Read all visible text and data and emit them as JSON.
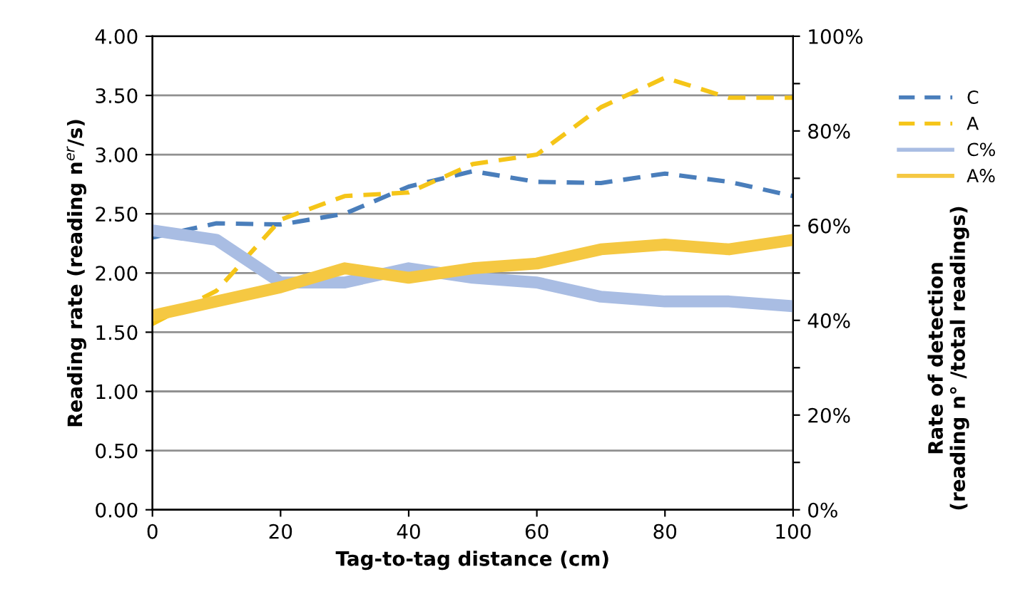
{
  "chart_data": {
    "type": "line",
    "xlabel": "Tag-to-tag distance (cm)",
    "ylabel": "Reading rate (reading n$^{er}$/s)",
    "y2label": "Rate of detection\n(reading n° /total readings)",
    "x": [
      0,
      10,
      20,
      30,
      40,
      50,
      60,
      70,
      80,
      90,
      100
    ],
    "xlim": [
      0,
      100
    ],
    "xticks": [
      0,
      20,
      40,
      60,
      80,
      100
    ],
    "ylim": [
      0,
      4
    ],
    "yticks": [
      {
        "value": 0,
        "label": "0.00"
      },
      {
        "value": 0.5,
        "label": "0.50"
      },
      {
        "value": 1,
        "label": "1.00"
      },
      {
        "value": 1.5,
        "label": "1.50"
      },
      {
        "value": 2,
        "label": "2.00"
      },
      {
        "value": 2.5,
        "label": "2.50"
      },
      {
        "value": 3,
        "label": "3.00"
      },
      {
        "value": 3.5,
        "label": "3.50"
      },
      {
        "value": 4,
        "label": "4.00"
      }
    ],
    "y2lim": [
      0,
      100
    ],
    "y2ticks": [
      {
        "value": 0,
        "label": "0%"
      },
      {
        "value": 10,
        "label": null
      },
      {
        "value": 20,
        "label": "20%"
      },
      {
        "value": 30,
        "label": null
      },
      {
        "value": 40,
        "label": "40%"
      },
      {
        "value": 50,
        "label": null
      },
      {
        "value": 60,
        "label": "60%"
      },
      {
        "value": 70,
        "label": null
      },
      {
        "value": 80,
        "label": "80%"
      },
      {
        "value": 90,
        "label": null
      },
      {
        "value": 100,
        "label": "100%"
      }
    ],
    "grid": "y",
    "legend": "right",
    "marker": "none",
    "series": [
      {
        "name": "C",
        "color": "#4a7ebb",
        "line_style": "dashed",
        "values": [
          2.3,
          2.42,
          2.41,
          2.5,
          2.73,
          2.86,
          2.77,
          2.76,
          2.84,
          2.77,
          2.65
        ]
      },
      {
        "name": "A",
        "color": "#f5c518",
        "line_style": "dashed",
        "values": [
          1.57,
          1.85,
          2.45,
          2.65,
          2.68,
          2.92,
          3.0,
          3.4,
          3.65,
          3.48,
          3.48
        ]
      },
      {
        "name": "C%",
        "color": "#a9bde3",
        "line_style": "solid",
        "axis": "y2",
        "values": [
          59,
          57,
          48,
          48,
          51,
          49,
          48,
          45,
          44,
          44,
          43
        ]
      },
      {
        "name": "A%",
        "color": "#f5c842",
        "line_style": "solid",
        "axis": "y2",
        "values": [
          41,
          44,
          47,
          51,
          49,
          51,
          52,
          55,
          56,
          55,
          57
        ]
      }
    ]
  }
}
